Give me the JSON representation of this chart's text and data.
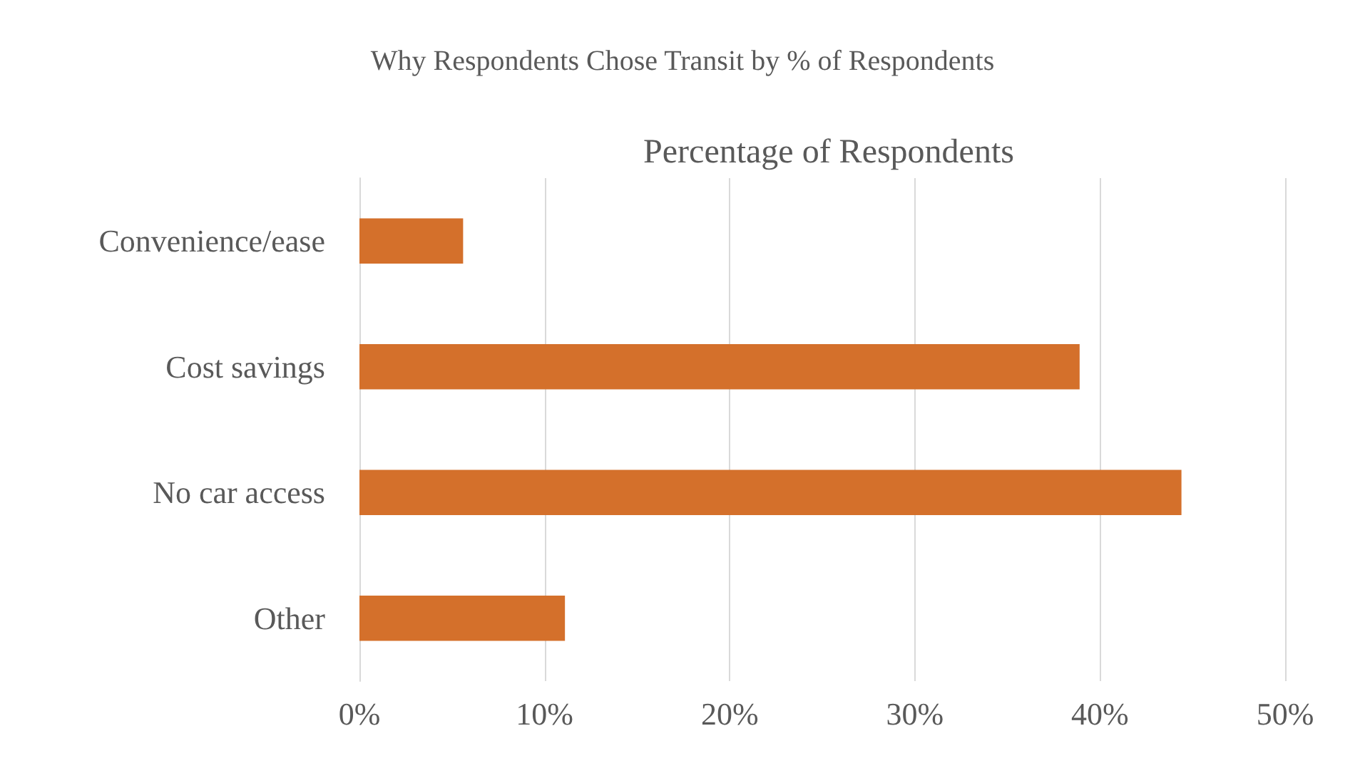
{
  "chart_data": {
    "type": "bar",
    "orientation": "horizontal",
    "title": "Why Respondents Chose Transit by % of Respondents",
    "subtitle": "Percentage of Respondents",
    "categories": [
      "Convenience/ease",
      "Cost savings",
      "No car access",
      "Other"
    ],
    "values": [
      5.6,
      38.9,
      44.4,
      11.1
    ],
    "color": "#d4702b",
    "xlim": [
      0,
      50
    ],
    "xticks": [
      {
        "value": 0,
        "label": "0%"
      },
      {
        "value": 10,
        "label": "10%"
      },
      {
        "value": 20,
        "label": "20%"
      },
      {
        "value": 30,
        "label": "30%"
      },
      {
        "value": 40,
        "label": "40%"
      },
      {
        "value": 50,
        "label": "50%"
      }
    ],
    "grid": "x"
  }
}
